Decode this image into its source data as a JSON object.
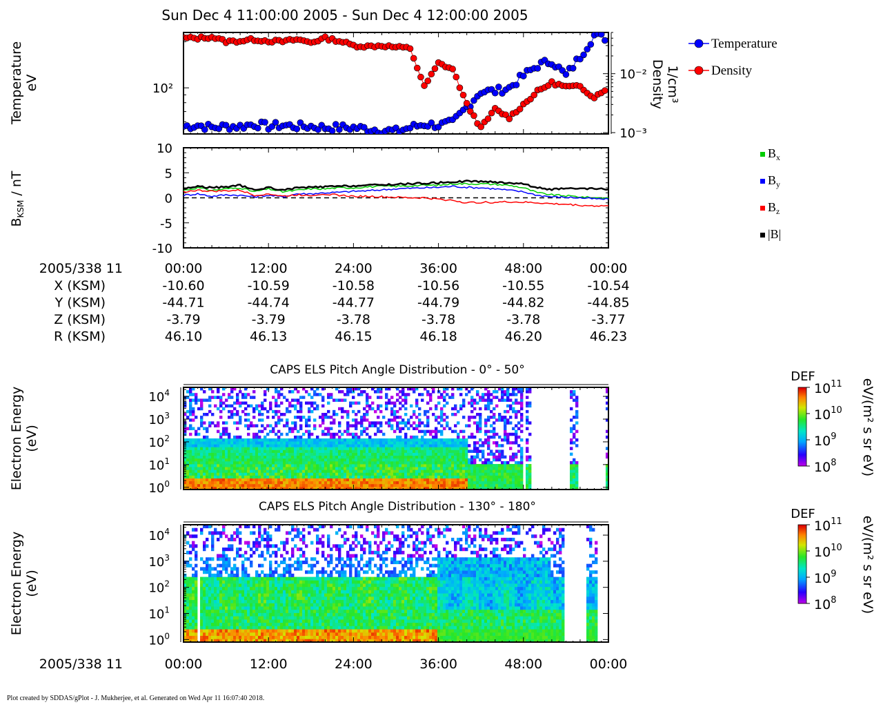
{
  "title": "Sun Dec 4 11:00:00 2005 - Sun Dec 4 12:00:00 2005",
  "footer": "Plot created by SDDAS/gPlot - J. Mukherjee, et al.  Generated on Wed Apr 11 16:07:40 2018.",
  "colors": {
    "temperature": "#0000ff",
    "density": "#ff0000",
    "bx": "#00cc00",
    "by": "#0000ff",
    "bz": "#ff0000",
    "bmag": "#000000"
  },
  "time_axis": {
    "label": "2005/338 11",
    "ticks": [
      "00:00",
      "12:00",
      "24:00",
      "36:00",
      "48:00",
      "00:00"
    ]
  },
  "ephemeris": [
    {
      "label": "X (KSM)",
      "values": [
        "-10.60",
        "-10.59",
        "-10.58",
        "-10.56",
        "-10.55",
        "-10.54"
      ]
    },
    {
      "label": "Y (KSM)",
      "values": [
        "-44.71",
        "-44.74",
        "-44.77",
        "-44.79",
        "-44.82",
        "-44.85"
      ]
    },
    {
      "label": "Z (KSM)",
      "values": [
        "-3.79",
        "-3.79",
        "-3.78",
        "-3.78",
        "-3.78",
        "-3.77"
      ]
    },
    {
      "label": "R (KSM)",
      "values": [
        "46.10",
        "46.13",
        "46.15",
        "46.18",
        "46.20",
        "46.23"
      ]
    }
  ],
  "chart_data": [
    {
      "type": "line",
      "ylabel_lines": [
        "Temperature",
        "eV"
      ],
      "y2label_lines": [
        "Density",
        "1/cm³"
      ],
      "y_tick_labels": [
        "10²"
      ],
      "y2_tick_labels": [
        "10⁻²",
        "10⁻³"
      ],
      "y_scale": "log",
      "ylim": [
        50,
        230
      ],
      "y2lim": [
        0.00095,
        0.05
      ],
      "xlim_minutes": [
        0,
        60
      ],
      "legend_position": "right",
      "series": [
        {
          "name": "Temperature",
          "color": "#0000ff",
          "x": [
            0,
            2,
            4,
            6,
            8,
            10,
            12,
            14,
            16,
            18,
            20,
            22,
            24,
            26,
            28,
            30,
            32,
            34,
            36,
            38,
            40,
            42,
            44,
            46,
            48,
            50,
            52,
            54,
            56,
            58,
            60
          ],
          "y": [
            56,
            57,
            55,
            56,
            56,
            58,
            56,
            57,
            56,
            56,
            55,
            55,
            55,
            54,
            53,
            52,
            55,
            58,
            57,
            59,
            75,
            95,
            95,
            100,
            120,
            140,
            150,
            120,
            160,
            220,
            210
          ]
        },
        {
          "name": "Density",
          "color": "#ff0000",
          "x": [
            0,
            2,
            4,
            6,
            8,
            10,
            12,
            14,
            16,
            18,
            20,
            22,
            24,
            26,
            28,
            30,
            32,
            34,
            36,
            38,
            40,
            42,
            44,
            46,
            48,
            50,
            52,
            54,
            56,
            58,
            60
          ],
          "y": [
            0.04,
            0.04,
            0.042,
            0.035,
            0.036,
            0.038,
            0.036,
            0.035,
            0.038,
            0.034,
            0.04,
            0.036,
            0.03,
            0.029,
            0.03,
            0.028,
            0.027,
            0.006,
            0.015,
            0.012,
            0.003,
            0.0012,
            0.0025,
            0.0018,
            0.003,
            0.005,
            0.007,
            0.006,
            0.006,
            0.004,
            0.006
          ]
        }
      ]
    },
    {
      "type": "line",
      "ylabel": "BKSM / nT",
      "ylabel_main": "B",
      "ylabel_sub": "KSM",
      "ylabel_rest": " / nT",
      "ylim": [
        -10,
        10
      ],
      "y_ticks": [
        "10",
        "5",
        "0",
        "-5",
        "-10"
      ],
      "xlim_minutes": [
        0,
        60
      ],
      "zero_line": "dashed",
      "series": [
        {
          "name": "Bx",
          "main": "B",
          "sub": "x",
          "color": "#00cc00",
          "x": [
            0,
            2,
            4,
            6,
            8,
            10,
            12,
            14,
            16,
            18,
            20,
            22,
            24,
            26,
            28,
            30,
            32,
            34,
            36,
            38,
            40,
            42,
            44,
            46,
            48,
            50,
            52,
            54,
            56,
            58,
            60
          ],
          "y": [
            1.5,
            2,
            1.5,
            1.8,
            2,
            1.2,
            1.8,
            1.2,
            1.5,
            1.8,
            1.8,
            2,
            2,
            2.2,
            2.3,
            2.3,
            2.4,
            2.5,
            2.5,
            2.8,
            2.8,
            2.8,
            2.7,
            2.5,
            2,
            1,
            0.6,
            0.4,
            0.2,
            0,
            0
          ]
        },
        {
          "name": "By",
          "main": "B",
          "sub": "y",
          "color": "#0000ff",
          "x": [
            0,
            2,
            4,
            6,
            8,
            10,
            12,
            14,
            16,
            18,
            20,
            22,
            24,
            26,
            28,
            30,
            32,
            34,
            36,
            38,
            40,
            42,
            44,
            46,
            48,
            50,
            52,
            54,
            56,
            58,
            60
          ],
          "y": [
            0.5,
            0.8,
            0.3,
            0.6,
            0.5,
            0.2,
            0.5,
            0.2,
            0.8,
            0.8,
            1,
            1.1,
            1.3,
            1.4,
            1.6,
            1.8,
            1.9,
            2,
            2.1,
            2.3,
            2.1,
            2,
            1.8,
            1.5,
            1.2,
            0.5,
            0.2,
            0.1,
            0,
            -0.2,
            -0.3
          ]
        },
        {
          "name": "Bz",
          "main": "B",
          "sub": "z",
          "color": "#ff0000",
          "x": [
            0,
            2,
            4,
            6,
            8,
            10,
            12,
            14,
            16,
            18,
            20,
            22,
            24,
            26,
            28,
            30,
            32,
            34,
            36,
            38,
            40,
            42,
            44,
            46,
            48,
            50,
            52,
            54,
            56,
            58,
            60
          ],
          "y": [
            1.2,
            1.5,
            1.3,
            1.4,
            1.5,
            0.5,
            0.8,
            0.3,
            0.6,
            0.5,
            0.8,
            0.5,
            0.3,
            0.3,
            0.2,
            0.1,
            0,
            0,
            -0.3,
            -0.5,
            -1,
            -0.9,
            -0.9,
            -0.8,
            -0.9,
            -1,
            -1.2,
            -1.3,
            -1.5,
            -1.6,
            -1.6
          ]
        },
        {
          "name": "|B|",
          "main": "|B|",
          "sub": "",
          "color": "#000000",
          "x": [
            0,
            2,
            4,
            6,
            8,
            10,
            12,
            14,
            16,
            18,
            20,
            22,
            24,
            26,
            28,
            30,
            32,
            34,
            36,
            38,
            40,
            42,
            44,
            46,
            48,
            50,
            52,
            54,
            56,
            58,
            60
          ],
          "y": [
            1.8,
            2.3,
            2,
            2.2,
            2.5,
            1.5,
            2.1,
            1.5,
            2,
            2.1,
            2.2,
            2.3,
            2.4,
            2.5,
            2.6,
            2.7,
            2.8,
            2.9,
            3,
            3.2,
            3.3,
            3.3,
            3.1,
            3,
            2.8,
            2,
            1.7,
            1.8,
            1.8,
            1.8,
            1.7
          ]
        }
      ]
    },
    {
      "type": "heatmap",
      "title": "CAPS ELS Pitch Angle Distribution - 0° - 50°",
      "ylabel_lines": [
        "Electron Energy",
        "(eV)"
      ],
      "y_scale": "log",
      "ylim": [
        0.8,
        25000
      ],
      "y_ticks": [
        1,
        10,
        100,
        1000,
        10000
      ],
      "colorbar": {
        "label": "DEF",
        "units": "eV/(m² s sr eV)",
        "range": [
          100000000.0,
          100000000000.0
        ],
        "ticks": [
          11,
          10,
          9,
          8
        ],
        "scale": "log"
      },
      "data_gaps_minutes": [
        [
          48.0,
          48.3
        ],
        [
          48.9,
          54.7
        ],
        [
          55.9,
          59.7
        ]
      ],
      "band_profile": "low-energy band near 1-10 eV, main band 10-100 eV until ~40 min, then enhanced noise"
    },
    {
      "type": "heatmap",
      "title": "CAPS ELS Pitch Angle Distribution - 130° - 180°",
      "ylabel_lines": [
        "Electron Energy",
        "(eV)"
      ],
      "y_scale": "log",
      "ylim": [
        0.8,
        25000
      ],
      "y_ticks": [
        1,
        10,
        100,
        1000,
        10000
      ],
      "colorbar": {
        "label": "DEF",
        "units": "eV/(m² s sr eV)",
        "range": [
          100000000.0,
          100000000000.0
        ],
        "ticks": [
          11,
          10,
          9,
          8
        ],
        "scale": "log"
      },
      "data_gaps_minutes": [
        [
          1.9,
          2.3
        ],
        [
          51.7,
          52.0
        ],
        [
          53.6,
          57.0
        ],
        [
          58.3,
          60.0
        ]
      ],
      "band_profile": "bands at 1-10 eV and 30-300 eV with bursts to 1 keV after 36 min"
    }
  ]
}
